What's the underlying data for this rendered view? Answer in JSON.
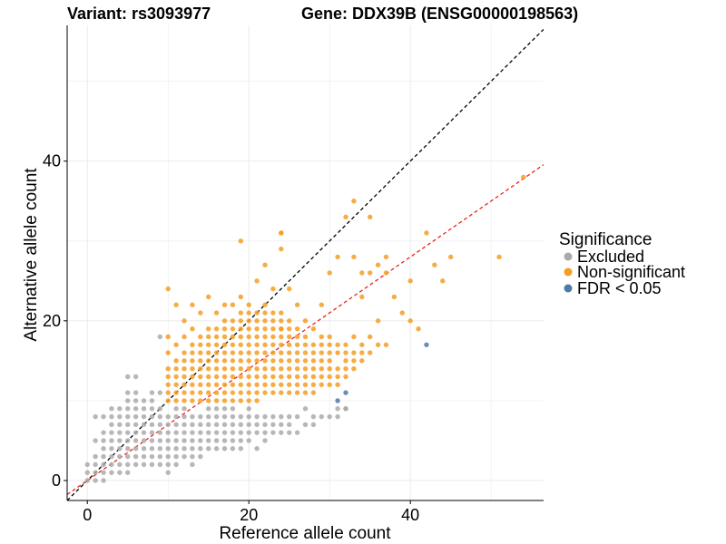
{
  "header": {
    "variant": "Variant: rs3093977",
    "gene": "Gene: DDX39B (ENSG00000198563)"
  },
  "legend": {
    "title": "Significance",
    "items": [
      {
        "label": "Excluded",
        "color": "#aaaaaa"
      },
      {
        "label": "Non-significant",
        "color": "#f59d24"
      },
      {
        "label": "FDR < 0.05",
        "color": "#4d7aa8"
      }
    ]
  },
  "chart_data": {
    "type": "scatter",
    "xlabel": "Reference allele count",
    "ylabel": "Alternative allele count",
    "xlim": [
      -2.5,
      56.5
    ],
    "ylim": [
      -2.5,
      57
    ],
    "x_ticks": [
      0,
      20,
      40
    ],
    "y_ticks": [
      0,
      20,
      40
    ],
    "grid": true,
    "legend_position": "right",
    "reference_lines": [
      {
        "name": "identity",
        "slope": 1,
        "intercept": 0,
        "color": "#000000",
        "style": "dashed"
      },
      {
        "name": "fit",
        "slope": 0.7,
        "intercept": 0,
        "color": "#e8231d",
        "style": "dashed"
      }
    ],
    "series": [
      {
        "name": "Excluded",
        "color": "#aaaaaa",
        "x": [
          0,
          0,
          0,
          1,
          1,
          1,
          1,
          1,
          1,
          2,
          2,
          2,
          2,
          2,
          2,
          2,
          2,
          3,
          3,
          3,
          3,
          3,
          3,
          3,
          3,
          3,
          4,
          4,
          4,
          4,
          4,
          4,
          4,
          4,
          4,
          5,
          5,
          5,
          5,
          5,
          5,
          5,
          5,
          5,
          5,
          5,
          5,
          6,
          6,
          6,
          6,
          6,
          6,
          6,
          6,
          6,
          6,
          6,
          7,
          7,
          7,
          7,
          7,
          7,
          7,
          7,
          7,
          8,
          8,
          8,
          8,
          8,
          8,
          8,
          8,
          8,
          8,
          9,
          9,
          9,
          9,
          9,
          9,
          9,
          9,
          9,
          9,
          10,
          10,
          10,
          10,
          10,
          10,
          10,
          10,
          11,
          11,
          11,
          11,
          11,
          11,
          11,
          11,
          12,
          12,
          12,
          12,
          12,
          12,
          12,
          13,
          13,
          13,
          13,
          13,
          13,
          13,
          14,
          14,
          14,
          14,
          14,
          14,
          15,
          15,
          15,
          15,
          15,
          15,
          16,
          16,
          16,
          16,
          16,
          16,
          17,
          17,
          17,
          17,
          17,
          17,
          18,
          18,
          18,
          18,
          18,
          18,
          19,
          19,
          19,
          19,
          19,
          20,
          20,
          20,
          20,
          20,
          21,
          21,
          21,
          21,
          22,
          22,
          22,
          22,
          23,
          23,
          23,
          24,
          24,
          24,
          25,
          25,
          25,
          26,
          26,
          27,
          27,
          28,
          28,
          29,
          30,
          31,
          31,
          32,
          32
        ],
        "y": [
          0,
          1,
          2,
          0,
          1,
          2,
          3,
          5,
          8,
          0,
          1,
          2,
          3,
          4,
          5,
          6,
          8,
          1,
          2,
          3,
          4,
          5,
          6,
          7,
          8,
          9,
          1,
          2,
          3,
          4,
          5,
          6,
          7,
          8,
          9,
          1,
          2,
          3,
          4,
          5,
          6,
          7,
          8,
          9,
          10,
          11,
          13,
          2,
          3,
          4,
          5,
          6,
          7,
          8,
          9,
          10,
          11,
          13,
          2,
          3,
          4,
          5,
          6,
          7,
          8,
          9,
          10,
          2,
          3,
          4,
          5,
          6,
          7,
          8,
          9,
          10,
          11,
          2,
          3,
          4,
          5,
          6,
          7,
          8,
          9,
          11,
          18,
          1,
          2,
          3,
          4,
          5,
          6,
          7,
          8,
          2,
          3,
          4,
          5,
          6,
          7,
          8,
          9,
          3,
          4,
          5,
          6,
          7,
          8,
          9,
          2,
          3,
          4,
          5,
          6,
          7,
          8,
          3,
          4,
          5,
          6,
          7,
          8,
          4,
          5,
          6,
          7,
          8,
          9,
          4,
          5,
          6,
          7,
          8,
          9,
          4,
          5,
          6,
          7,
          8,
          9,
          4,
          5,
          6,
          7,
          8,
          9,
          4,
          5,
          6,
          7,
          8,
          5,
          6,
          7,
          8,
          9,
          4,
          6,
          7,
          8,
          5,
          6,
          7,
          8,
          6,
          7,
          8,
          6,
          7,
          8,
          6,
          7,
          8,
          6,
          8,
          7,
          9,
          7,
          8,
          8,
          8,
          8,
          9,
          9,
          9
        ]
      },
      {
        "name": "Non-significant",
        "color": "#f59d24",
        "x": [
          10,
          10,
          10,
          10,
          10,
          10,
          10,
          10,
          11,
          11,
          11,
          11,
          11,
          11,
          11,
          11,
          12,
          12,
          12,
          12,
          12,
          12,
          12,
          12,
          12,
          13,
          13,
          13,
          13,
          13,
          13,
          13,
          13,
          13,
          13,
          14,
          14,
          14,
          14,
          14,
          14,
          14,
          14,
          14,
          14,
          15,
          15,
          15,
          15,
          15,
          15,
          15,
          15,
          15,
          15,
          15,
          16,
          16,
          16,
          16,
          16,
          16,
          16,
          16,
          16,
          16,
          16,
          17,
          17,
          17,
          17,
          17,
          17,
          17,
          17,
          17,
          17,
          17,
          17,
          18,
          18,
          18,
          18,
          18,
          18,
          18,
          18,
          18,
          18,
          18,
          18,
          19,
          19,
          19,
          19,
          19,
          19,
          19,
          19,
          19,
          19,
          19,
          19,
          19,
          20,
          20,
          20,
          20,
          20,
          20,
          20,
          20,
          20,
          20,
          20,
          20,
          20,
          21,
          21,
          21,
          21,
          21,
          21,
          21,
          21,
          21,
          21,
          21,
          21,
          21,
          22,
          22,
          22,
          22,
          22,
          22,
          22,
          22,
          22,
          22,
          22,
          22,
          22,
          23,
          23,
          23,
          23,
          23,
          23,
          23,
          23,
          23,
          23,
          23,
          23,
          24,
          24,
          24,
          24,
          24,
          24,
          24,
          24,
          24,
          24,
          24,
          24,
          25,
          25,
          25,
          25,
          25,
          25,
          25,
          25,
          25,
          25,
          25,
          26,
          26,
          26,
          26,
          26,
          26,
          26,
          26,
          26,
          26,
          27,
          27,
          27,
          27,
          27,
          27,
          27,
          27,
          27,
          28,
          28,
          28,
          28,
          28,
          28,
          28,
          28,
          29,
          29,
          29,
          29,
          29,
          29,
          29,
          29,
          30,
          30,
          30,
          30,
          30,
          30,
          30,
          31,
          31,
          31,
          31,
          31,
          31,
          32,
          32,
          32,
          32,
          32,
          32,
          33,
          33,
          33,
          33,
          33,
          34,
          34,
          34,
          34,
          35,
          35,
          35,
          36,
          36,
          36,
          37,
          37,
          38,
          39,
          40,
          41,
          42,
          45,
          51,
          54,
          19,
          24,
          24,
          30,
          33,
          34,
          35,
          37,
          40,
          43,
          44,
          24
        ],
        "y": [
          10,
          11,
          12,
          13,
          14,
          16,
          18,
          24,
          10,
          11,
          12,
          13,
          14,
          15,
          17,
          22,
          10,
          11,
          12,
          13,
          14,
          15,
          16,
          18,
          20,
          10,
          11,
          12,
          13,
          14,
          15,
          16,
          17,
          19,
          22,
          10,
          11,
          12,
          13,
          14,
          15,
          16,
          17,
          18,
          21,
          10,
          11,
          12,
          13,
          14,
          15,
          16,
          17,
          18,
          19,
          23,
          10,
          11,
          12,
          13,
          14,
          15,
          16,
          17,
          18,
          19,
          21,
          10,
          11,
          12,
          13,
          14,
          15,
          16,
          17,
          18,
          19,
          20,
          22,
          10,
          11,
          12,
          13,
          14,
          15,
          16,
          17,
          18,
          19,
          20,
          22,
          10,
          11,
          12,
          13,
          14,
          15,
          16,
          17,
          18,
          19,
          20,
          21,
          23,
          10,
          11,
          12,
          13,
          14,
          15,
          16,
          17,
          18,
          19,
          20,
          21,
          22,
          10,
          11,
          12,
          13,
          14,
          15,
          16,
          17,
          18,
          19,
          20,
          21,
          25,
          11,
          12,
          13,
          14,
          15,
          16,
          17,
          18,
          19,
          20,
          21,
          22,
          27,
          11,
          12,
          13,
          14,
          15,
          16,
          17,
          18,
          19,
          20,
          21,
          24,
          11,
          12,
          13,
          14,
          15,
          16,
          17,
          18,
          19,
          20,
          21,
          31,
          11,
          12,
          13,
          14,
          15,
          16,
          17,
          18,
          19,
          20,
          24,
          11,
          12,
          13,
          14,
          15,
          16,
          17,
          18,
          19,
          22,
          11,
          12,
          13,
          14,
          15,
          16,
          17,
          18,
          20,
          11,
          12,
          13,
          14,
          15,
          16,
          17,
          19,
          12,
          13,
          14,
          15,
          16,
          17,
          18,
          22,
          12,
          13,
          14,
          15,
          16,
          17,
          18,
          12,
          13,
          14,
          16,
          17,
          28,
          13,
          14,
          15,
          16,
          17,
          33,
          14,
          15,
          16,
          18,
          35,
          15,
          16,
          17,
          23,
          16,
          18,
          33,
          17,
          20,
          27,
          17,
          26,
          23,
          21,
          20,
          19,
          31,
          28,
          28,
          38,
          30,
          29,
          31,
          26,
          28,
          26,
          26,
          28,
          25,
          27,
          25,
          19
        ]
      },
      {
        "name": "FDR < 0.05",
        "color": "#4d7aa8",
        "x": [
          31,
          32,
          42
        ],
        "y": [
          10,
          11,
          17
        ]
      }
    ]
  }
}
